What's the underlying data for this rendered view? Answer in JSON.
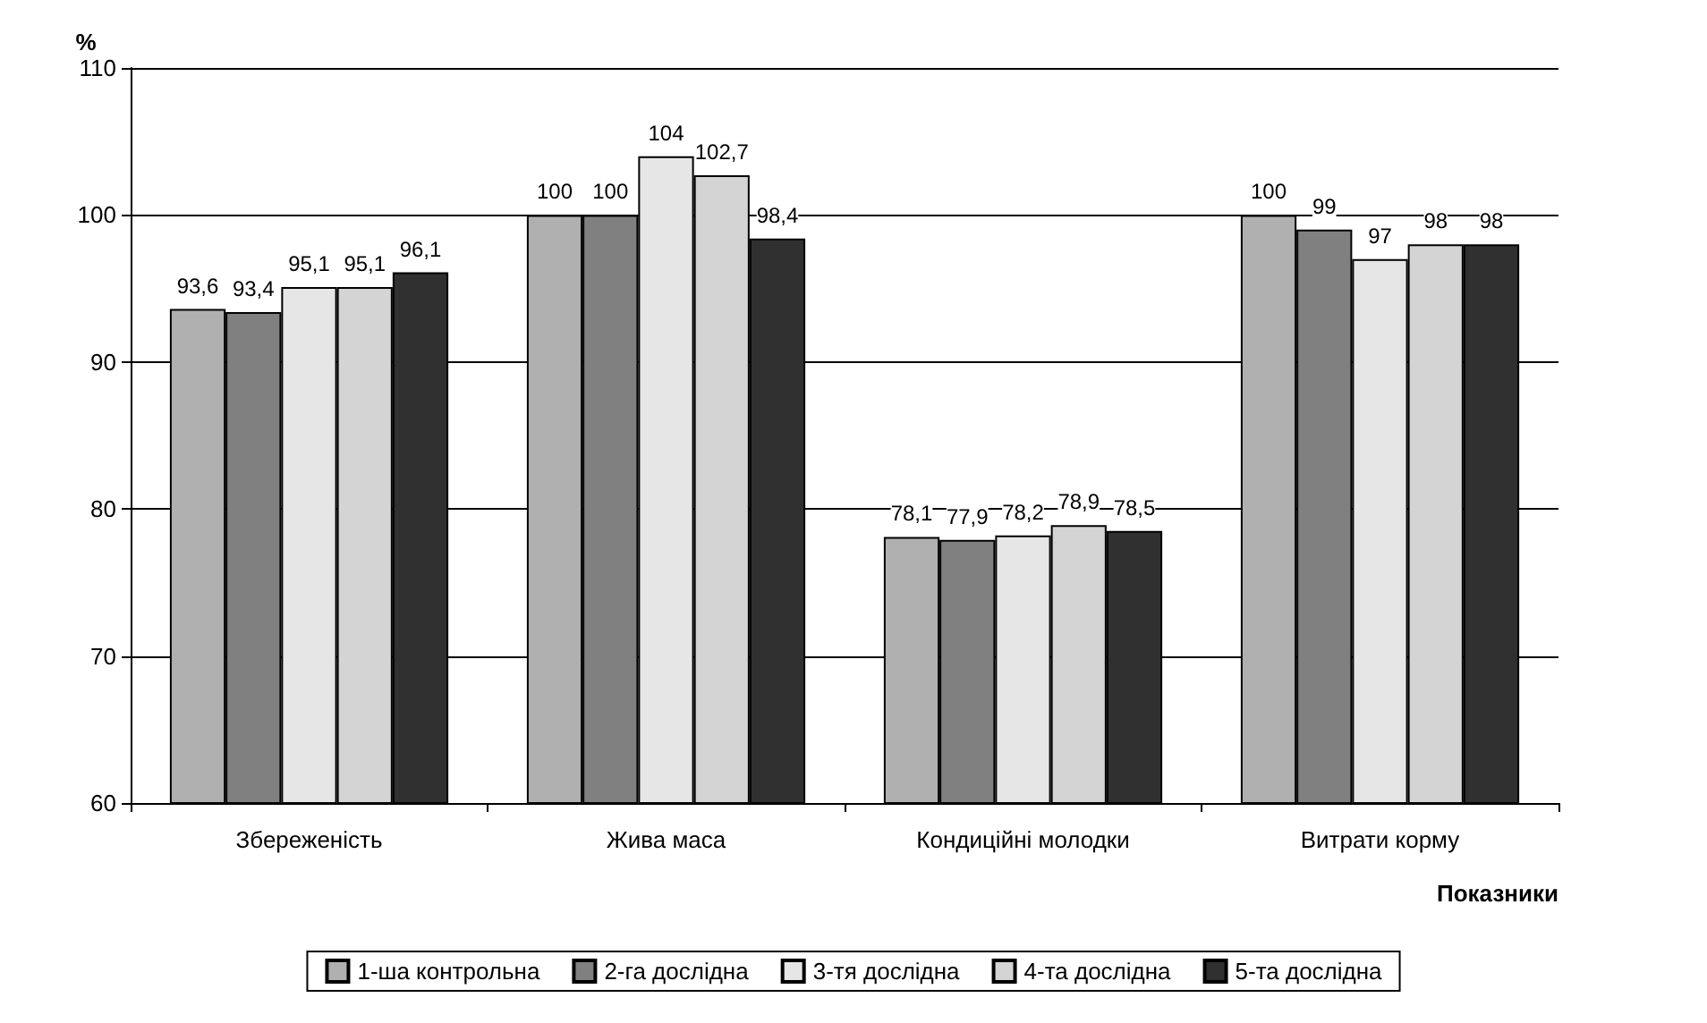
{
  "chart_data": {
    "type": "bar",
    "ylabel": "%",
    "xlabel": "Показники",
    "categories": [
      "Збереженість",
      "Жива маса",
      "Кондиційні молодки",
      "Витрати корму"
    ],
    "series": [
      {
        "name": "1-ша контрольна",
        "color": "#b0b0b0",
        "values": [
          93.6,
          100,
          78.1,
          100
        ],
        "value_labels": [
          "93,6",
          "100",
          "78,1",
          "100"
        ]
      },
      {
        "name": "2-га дослідна",
        "color": "#808080",
        "values": [
          93.4,
          100,
          77.9,
          99
        ],
        "value_labels": [
          "93,4",
          "100",
          "77,9",
          "99"
        ]
      },
      {
        "name": "3-тя дослідна",
        "color": "#e6e6e6",
        "values": [
          95.1,
          104,
          78.2,
          97
        ],
        "value_labels": [
          "95,1",
          "104",
          "78,2",
          "97"
        ]
      },
      {
        "name": "4-та дослідна",
        "color": "#d4d4d4",
        "values": [
          95.1,
          102.7,
          78.9,
          98
        ],
        "value_labels": [
          "95,1",
          "102,7",
          "78,9",
          "98"
        ]
      },
      {
        "name": "5-та дослідна",
        "color": "#303030",
        "values": [
          96.1,
          98.4,
          78.5,
          98
        ],
        "value_labels": [
          "96,1",
          "98,4",
          "78,5",
          "98"
        ]
      }
    ],
    "ylim": [
      60,
      110
    ],
    "yticks": [
      60,
      70,
      80,
      90,
      100,
      110
    ],
    "grid": "y",
    "legend": "bottom"
  }
}
